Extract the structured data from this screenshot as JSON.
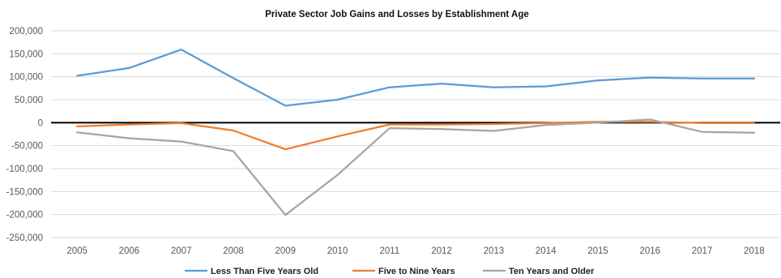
{
  "chart_data": {
    "type": "line",
    "title": "Private Sector Job Gains and Losses by Establishment Age",
    "xlabel": "",
    "ylabel": "",
    "x": [
      "2005",
      "2006",
      "2007",
      "2008",
      "2009",
      "2010",
      "2011",
      "2012",
      "2013",
      "2014",
      "2015",
      "2016",
      "2017",
      "2018"
    ],
    "ylim": [
      -250000,
      200000
    ],
    "yticks": [
      200000,
      150000,
      100000,
      50000,
      0,
      -50000,
      -100000,
      -150000,
      -200000,
      -250000
    ],
    "ytick_labels": [
      "200,000",
      "150,000",
      "100,000",
      "50,000",
      "0",
      "-50,000",
      "-100,000",
      "-150,000",
      "-200,000",
      "-250,000"
    ],
    "grid": true,
    "legend_position": "bottom",
    "series": [
      {
        "name": "Less Than Five Years Old",
        "color": "#5b9bd5",
        "values": [
          102000,
          119000,
          159000,
          97000,
          37000,
          50000,
          77000,
          85000,
          77000,
          79000,
          92000,
          98000,
          96000,
          96000
        ]
      },
      {
        "name": "Five to Nine Years",
        "color": "#ed7d31",
        "values": [
          -8000,
          -4000,
          -1000,
          -17000,
          -58000,
          -30000,
          -4000,
          -4000,
          -3000,
          -1000,
          2000,
          2000,
          -1000,
          -1000
        ]
      },
      {
        "name": "Ten Years and Older",
        "color": "#a5a5a5",
        "values": [
          -21000,
          -34000,
          -41000,
          -62000,
          -201000,
          -114000,
          -12000,
          -14000,
          -18000,
          -5000,
          0,
          7000,
          -20000,
          -22000
        ]
      }
    ]
  }
}
